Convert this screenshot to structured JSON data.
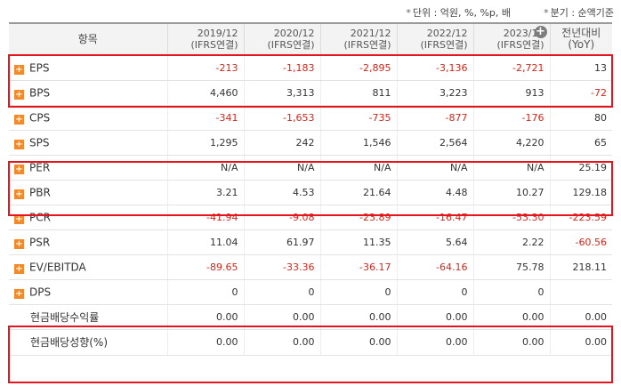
{
  "notes": {
    "unit": "단위 : 억원, %, %p, 배",
    "basis": "분기 : 순액기준"
  },
  "colors": {
    "negative": "#d2261a",
    "highlight": "#e8141c",
    "expand_icon": "#f08a2c"
  },
  "header": {
    "item": "항목",
    "periods": [
      {
        "year": "2019/12",
        "type": "(IFRS연결)"
      },
      {
        "year": "2020/12",
        "type": "(IFRS연결)"
      },
      {
        "year": "2021/12",
        "type": "(IFRS연결)"
      },
      {
        "year": "2022/12",
        "type": "(IFRS연결)"
      },
      {
        "year": "2023/12",
        "type": "(IFRS연결)"
      }
    ],
    "yoy_line1": "전년대비",
    "yoy_line2": "(YoY)",
    "add_icon": "plus-circle-icon"
  },
  "rows": [
    {
      "label": "EPS",
      "expandable": true,
      "values": [
        "-213",
        "-1,183",
        "-2,895",
        "-3,136",
        "-2,721",
        "13"
      ]
    },
    {
      "label": "BPS",
      "expandable": true,
      "values": [
        "4,460",
        "3,313",
        "811",
        "3,223",
        "913",
        "-72"
      ]
    },
    {
      "label": "CPS",
      "expandable": true,
      "values": [
        "-341",
        "-1,653",
        "-735",
        "-877",
        "-176",
        "80"
      ]
    },
    {
      "label": "SPS",
      "expandable": true,
      "values": [
        "1,295",
        "242",
        "1,546",
        "2,564",
        "4,220",
        "65"
      ]
    },
    {
      "label": "PER",
      "expandable": true,
      "values": [
        "N/A",
        "N/A",
        "N/A",
        "N/A",
        "N/A",
        "25.19"
      ]
    },
    {
      "label": "PBR",
      "expandable": true,
      "values": [
        "3.21",
        "4.53",
        "21.64",
        "4.48",
        "10.27",
        "129.18"
      ]
    },
    {
      "label": "PCR",
      "expandable": true,
      "values": [
        "-41.94",
        "-9.08",
        "-23.89",
        "-16.47",
        "-53.30",
        "-223.59"
      ]
    },
    {
      "label": "PSR",
      "expandable": true,
      "values": [
        "11.04",
        "61.97",
        "11.35",
        "5.64",
        "2.22",
        "-60.56"
      ]
    },
    {
      "label": "EV/EBITDA",
      "expandable": true,
      "values": [
        "-89.65",
        "-33.36",
        "-36.17",
        "-64.16",
        "75.78",
        "218.11"
      ]
    },
    {
      "label": "DPS",
      "expandable": true,
      "values": [
        "0",
        "0",
        "0",
        "0",
        "0",
        ""
      ]
    },
    {
      "label": "현금배당수익률",
      "expandable": false,
      "values": [
        "0.00",
        "0.00",
        "0.00",
        "0.00",
        "0.00",
        "0.00"
      ]
    },
    {
      "label": "현금배당성향(%)",
      "expandable": false,
      "values": [
        "0.00",
        "0.00",
        "0.00",
        "0.00",
        "0.00",
        "0.00"
      ]
    }
  ]
}
